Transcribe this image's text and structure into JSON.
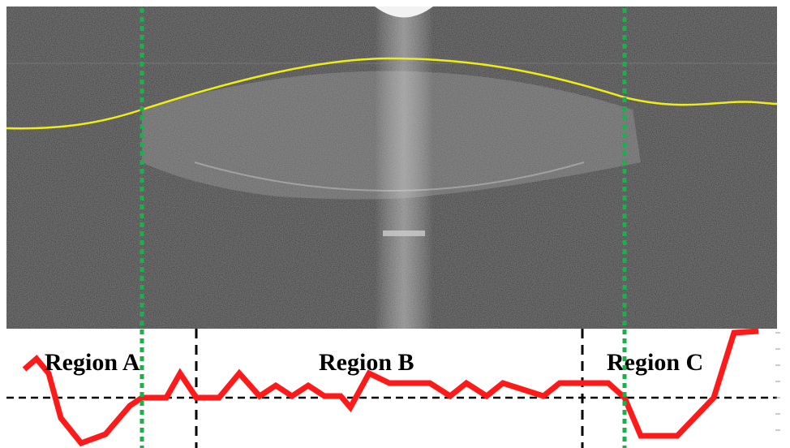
{
  "regions": [
    "Region A",
    "Region B",
    "Region C"
  ]
}
